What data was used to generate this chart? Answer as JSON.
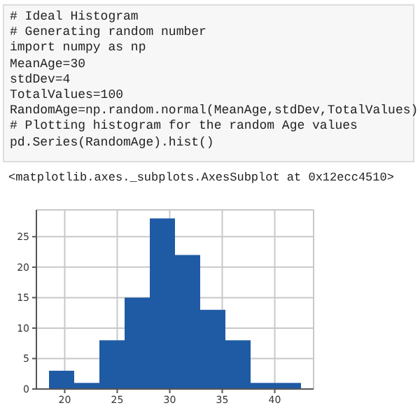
{
  "chart_data": {
    "type": "histogram",
    "annotations": [
      "# Ideal Histogram",
      "# Generating random number",
      "import numpy as np",
      "MeanAge=30",
      "stdDev=4",
      "TotalValues=100",
      "RandomAge=np.random.normal(MeanAge,stdDev,TotalValues)",
      "# Plotting histogram for the random Age values",
      "pd.Series(RandomAge).hist()",
      "<matplotlib.axes._subplots.AxesSubplot at 0x12ecc4510>"
    ],
    "bins": [
      18.5,
      20.9,
      23.3,
      25.7,
      28.1,
      30.5,
      32.9,
      35.3,
      37.7,
      40.1,
      42.5
    ],
    "values": [
      3,
      1,
      8,
      15,
      28,
      22,
      13,
      8,
      1,
      1
    ],
    "color": "#1f5ba4",
    "xlim": [
      17.3,
      43.7
    ],
    "xticks": [
      20,
      25,
      30,
      35,
      40
    ],
    "ylim": [
      0,
      29.4
    ],
    "yticks": [
      0,
      5,
      10,
      15,
      20,
      25
    ],
    "grid": true
  }
}
